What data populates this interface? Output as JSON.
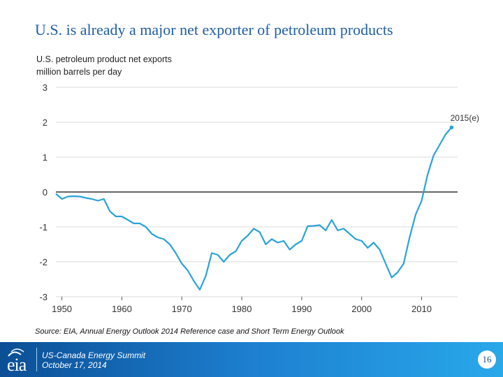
{
  "slide_title": "U.S. is already a major net exporter of petroleum products",
  "chart_data": {
    "type": "line",
    "title": "U.S. petroleum product net exports",
    "subtitle": "million barrels per day",
    "xlabel": "",
    "ylabel": "million barrels per day",
    "xlim": [
      1949,
      2016
    ],
    "ylim": [
      -3,
      3
    ],
    "x_ticks": [
      "1950",
      "1960",
      "1970",
      "1980",
      "1990",
      "2000",
      "2010"
    ],
    "y_ticks": [
      "3",
      "2",
      "1",
      "0",
      "-1",
      "-2",
      "-3"
    ],
    "annotation": {
      "label": "2015(e)",
      "x": 2015,
      "y": 1.9
    },
    "series": [
      {
        "name": "Net exports",
        "color": "#2aa3d9",
        "x": [
          1949,
          1950,
          1951,
          1952,
          1953,
          1954,
          1955,
          1956,
          1957,
          1958,
          1959,
          1960,
          1961,
          1962,
          1963,
          1964,
          1965,
          1966,
          1967,
          1968,
          1969,
          1970,
          1971,
          1972,
          1973,
          1974,
          1975,
          1976,
          1977,
          1978,
          1979,
          1980,
          1981,
          1982,
          1983,
          1984,
          1985,
          1986,
          1987,
          1988,
          1989,
          1990,
          1991,
          1992,
          1993,
          1994,
          1995,
          1996,
          1997,
          1998,
          1999,
          2000,
          2001,
          2002,
          2003,
          2004,
          2005,
          2006,
          2007,
          2008,
          2009,
          2010,
          2011,
          2012,
          2013,
          2014,
          2015
        ],
        "y": [
          -0.05,
          -0.2,
          -0.13,
          -0.12,
          -0.13,
          -0.17,
          -0.2,
          -0.25,
          -0.2,
          -0.55,
          -0.7,
          -0.7,
          -0.8,
          -0.9,
          -0.9,
          -1.0,
          -1.2,
          -1.3,
          -1.35,
          -1.5,
          -1.75,
          -2.05,
          -2.25,
          -2.55,
          -2.8,
          -2.4,
          -1.75,
          -1.8,
          -2.0,
          -1.8,
          -1.7,
          -1.4,
          -1.25,
          -1.05,
          -1.15,
          -1.5,
          -1.35,
          -1.45,
          -1.4,
          -1.65,
          -1.5,
          -1.4,
          -0.98,
          -0.97,
          -0.95,
          -1.1,
          -0.8,
          -1.1,
          -1.05,
          -1.2,
          -1.35,
          -1.4,
          -1.6,
          -1.45,
          -1.65,
          -2.05,
          -2.45,
          -2.3,
          -2.05,
          -1.3,
          -0.65,
          -0.25,
          0.5,
          1.05,
          1.35,
          1.65,
          1.85
        ]
      }
    ]
  },
  "source": "Source:  EIA, Annual Energy Outlook 2014 Reference case and Short Term Energy Outlook",
  "footer": {
    "logo": "eia",
    "line1": "US-Canada Energy Summit",
    "line2": "October 17, 2014",
    "page": "16"
  },
  "colors": {
    "title": "#1f5fa6",
    "series": "#2aa3d9",
    "footer": "#1d7fd0"
  }
}
